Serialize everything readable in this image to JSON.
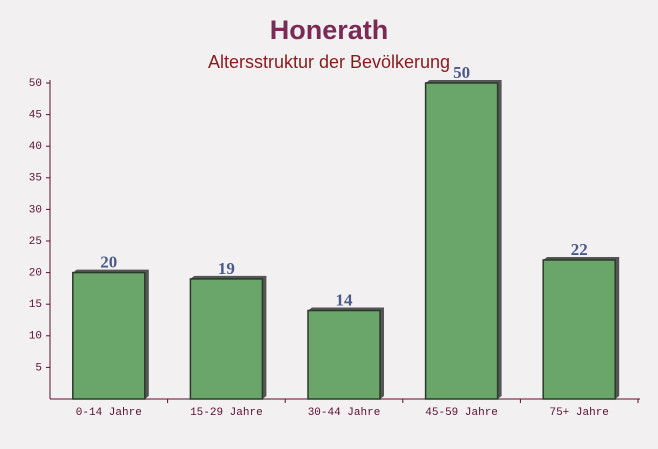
{
  "chart_data": {
    "type": "bar",
    "title": "Honerath",
    "subtitle": "Altersstruktur der Bevölkerung",
    "categories": [
      "0-14 Jahre",
      "15-29 Jahre",
      "30-44 Jahre",
      "45-59 Jahre",
      "75+ Jahre"
    ],
    "values": [
      20,
      19,
      14,
      50,
      22
    ],
    "color": "#6aa66a",
    "ylim": [
      0,
      50
    ],
    "yticks": [
      5,
      10,
      15,
      20,
      25,
      30,
      35,
      40,
      45,
      50
    ],
    "grid": false
  }
}
